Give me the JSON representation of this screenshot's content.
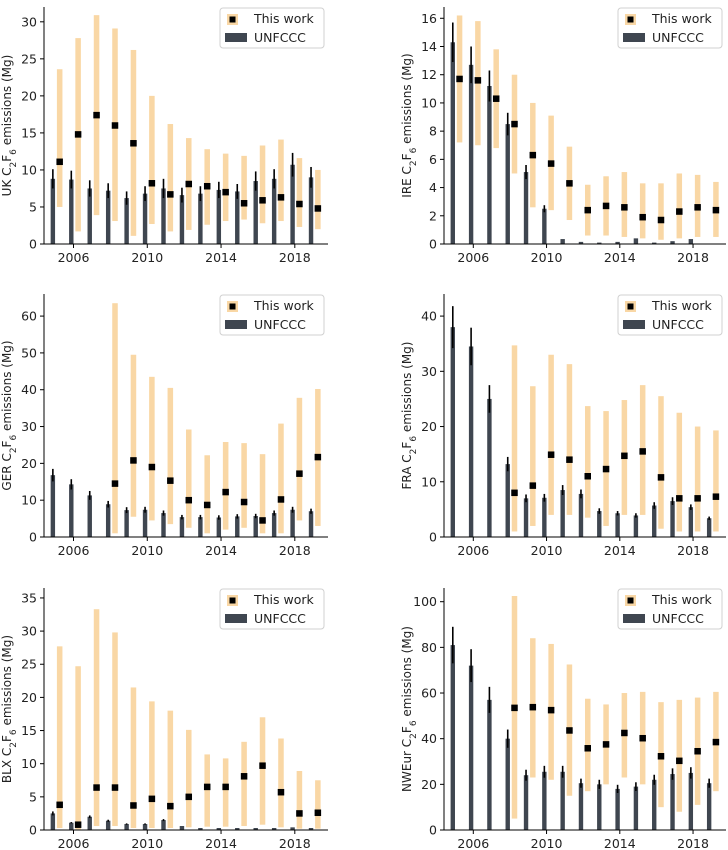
{
  "legend": {
    "this_work": "This work",
    "unfccc": "UNFCCC"
  },
  "colors": {
    "this_work_range": "#f9d7a5",
    "this_work_marker": "#000000",
    "unfccc_bar": "#3f4650",
    "unfccc_error": "#000000"
  },
  "chart_data": [
    {
      "type": "bar",
      "region": "UK",
      "ylabel": "UK C2F6 emissions (Mg)",
      "x": [
        2005,
        2006,
        2007,
        2008,
        2009,
        2010,
        2011,
        2012,
        2013,
        2014,
        2015,
        2016,
        2017,
        2018,
        2019
      ],
      "xticks": [
        2006,
        2010,
        2014,
        2018
      ],
      "ylim": [
        0,
        32
      ],
      "yticks": [
        0,
        5,
        10,
        15,
        20,
        25,
        30
      ],
      "series": [
        {
          "name": "This work",
          "type": "range_with_point",
          "values": [
            11.1,
            14.8,
            17.4,
            16.0,
            13.6,
            8.2,
            6.7,
            8.1,
            7.8,
            7.0,
            5.5,
            5.9,
            6.3,
            5.4,
            4.8
          ],
          "lower": [
            5.0,
            1.7,
            3.9,
            3.1,
            1.1,
            2.7,
            1.7,
            1.9,
            2.6,
            3.1,
            3.3,
            2.8,
            3.1,
            2.3,
            2.0
          ],
          "upper": [
            23.6,
            27.8,
            30.9,
            29.1,
            26.2,
            20.0,
            16.2,
            14.3,
            12.8,
            12.2,
            11.9,
            13.3,
            14.1,
            11.6,
            10.0
          ]
        },
        {
          "name": "UNFCCC",
          "type": "bar_with_error",
          "values": [
            8.8,
            8.7,
            7.5,
            7.2,
            6.2,
            6.8,
            7.5,
            6.6,
            6.8,
            7.3,
            7.1,
            8.5,
            8.8,
            10.7,
            9.0
          ],
          "error": [
            1.3,
            1.2,
            1.1,
            1.0,
            0.9,
            1.0,
            1.3,
            1.0,
            1.0,
            1.1,
            1.0,
            1.3,
            1.3,
            1.6,
            1.4
          ]
        }
      ]
    },
    {
      "type": "bar",
      "region": "IRE",
      "ylabel": "IRE C2F6 emissions (Mg)",
      "x": [
        2005,
        2006,
        2007,
        2008,
        2009,
        2010,
        2011,
        2012,
        2013,
        2014,
        2015,
        2016,
        2017,
        2018,
        2019
      ],
      "xticks": [
        2006,
        2010,
        2014,
        2018
      ],
      "ylim": [
        0,
        16.8
      ],
      "yticks": [
        0,
        2,
        4,
        6,
        8,
        10,
        12,
        14,
        16
      ],
      "series": [
        {
          "name": "This work",
          "type": "range_with_point",
          "values": [
            11.7,
            11.6,
            10.3,
            8.5,
            6.3,
            5.7,
            4.3,
            2.4,
            2.7,
            2.6,
            1.9,
            1.7,
            2.3,
            2.6,
            2.4
          ],
          "lower": [
            7.2,
            7.0,
            6.8,
            5.0,
            2.6,
            2.4,
            1.7,
            0.6,
            0.6,
            0.5,
            0.4,
            0.3,
            0.4,
            0.5,
            0.5
          ],
          "upper": [
            16.2,
            15.8,
            13.8,
            12.0,
            10.0,
            9.1,
            6.9,
            4.2,
            4.8,
            5.1,
            4.3,
            4.3,
            5.0,
            4.9,
            4.4
          ]
        },
        {
          "name": "UNFCCC",
          "type": "bar_with_error",
          "values": [
            14.3,
            12.7,
            11.2,
            8.5,
            5.1,
            2.5,
            0.35,
            0.15,
            0.1,
            0.15,
            0.4,
            0.1,
            0.2,
            0.35,
            0
          ],
          "error": [
            1.4,
            1.3,
            1.1,
            0.8,
            0.5,
            0.25,
            0,
            0,
            0,
            0,
            0,
            0,
            0,
            0,
            0
          ]
        }
      ]
    },
    {
      "type": "bar",
      "region": "GER",
      "ylabel": "GER C2F6 emissions (Mg)",
      "x": [
        2005,
        2006,
        2007,
        2008,
        2009,
        2010,
        2011,
        2012,
        2013,
        2014,
        2015,
        2016,
        2017,
        2018,
        2019
      ],
      "xticks": [
        2006,
        2010,
        2014,
        2018
      ],
      "ylim": [
        0,
        66
      ],
      "yticks": [
        0,
        10,
        20,
        30,
        40,
        50,
        60
      ],
      "series": [
        {
          "name": "This work",
          "type": "range_with_point",
          "values": [
            null,
            null,
            null,
            14.5,
            20.8,
            19.0,
            15.3,
            10.0,
            8.7,
            12.2,
            9.5,
            4.5,
            10.2,
            17.2,
            21.7
          ],
          "lower": [
            null,
            null,
            null,
            1.0,
            5.5,
            4.5,
            3.5,
            2.5,
            1.0,
            2.0,
            2.5,
            1.0,
            1.0,
            4.5,
            3.0
          ],
          "upper": [
            null,
            null,
            null,
            63.5,
            49.5,
            43.5,
            40.5,
            29.2,
            22.2,
            25.8,
            25.5,
            22.5,
            30.8,
            37.8,
            40.2
          ]
        },
        {
          "name": "UNFCCC",
          "type": "bar_with_error",
          "values": [
            16.8,
            14.3,
            11.3,
            8.9,
            7.3,
            7.4,
            6.5,
            5.4,
            5.4,
            5.3,
            5.6,
            5.7,
            6.5,
            7.4,
            7.0
          ],
          "error": [
            1.7,
            1.4,
            1.2,
            0.9,
            0.8,
            0.8,
            0.7,
            0.6,
            0.6,
            0.6,
            0.6,
            0.6,
            0.7,
            0.8,
            0.7
          ]
        }
      ]
    },
    {
      "type": "bar",
      "region": "FRA",
      "ylabel": "FRA C2F6 emissions (Mg)",
      "x": [
        2005,
        2006,
        2007,
        2008,
        2009,
        2010,
        2011,
        2012,
        2013,
        2014,
        2015,
        2016,
        2017,
        2018,
        2019
      ],
      "xticks": [
        2006,
        2010,
        2014,
        2018
      ],
      "ylim": [
        0,
        44
      ],
      "yticks": [
        0,
        10,
        20,
        30,
        40
      ],
      "series": [
        {
          "name": "This work",
          "type": "range_with_point",
          "values": [
            null,
            null,
            null,
            8.0,
            9.3,
            14.9,
            14.0,
            11.0,
            12.3,
            14.7,
            15.5,
            10.8,
            7.0,
            7.0,
            7.3
          ],
          "lower": [
            null,
            null,
            null,
            1.0,
            2.0,
            4.0,
            4.0,
            3.5,
            2.0,
            4.0,
            4.0,
            1.5,
            1.0,
            1.0,
            1.0
          ],
          "upper": [
            null,
            null,
            null,
            34.7,
            27.3,
            33.0,
            31.3,
            23.7,
            22.8,
            24.8,
            27.5,
            25.5,
            22.5,
            20.0,
            19.3
          ]
        },
        {
          "name": "UNFCCC",
          "type": "bar_with_error",
          "values": [
            38.0,
            34.5,
            25.0,
            13.2,
            7.0,
            7.1,
            8.5,
            7.8,
            4.7,
            4.3,
            3.9,
            5.7,
            6.5,
            5.4,
            3.4
          ],
          "error": [
            3.8,
            3.4,
            2.5,
            1.3,
            0.7,
            0.7,
            0.9,
            0.8,
            0.5,
            0.4,
            0.4,
            0.6,
            0.7,
            0.5,
            0.3
          ]
        }
      ]
    },
    {
      "type": "bar",
      "region": "BLX",
      "ylabel": "BLX C2F6 emissions (Mg)",
      "x": [
        2005,
        2006,
        2007,
        2008,
        2009,
        2010,
        2011,
        2012,
        2013,
        2014,
        2015,
        2016,
        2017,
        2018,
        2019
      ],
      "xticks": [
        2006,
        2010,
        2014,
        2018
      ],
      "ylim": [
        0,
        36.5
      ],
      "yticks": [
        0,
        5,
        10,
        15,
        20,
        25,
        30,
        35
      ],
      "series": [
        {
          "name": "This work",
          "type": "range_with_point",
          "values": [
            3.8,
            0.8,
            6.4,
            6.4,
            3.7,
            4.7,
            3.6,
            5.0,
            6.5,
            6.5,
            8.1,
            9.7,
            5.7,
            2.5,
            2.6
          ],
          "lower": [
            0.3,
            0.1,
            0.6,
            0.6,
            0.3,
            0.3,
            0.3,
            0.4,
            0.5,
            0.5,
            0.6,
            0.8,
            0.4,
            0.2,
            0.2
          ],
          "upper": [
            27.7,
            24.7,
            33.3,
            29.8,
            21.5,
            19.4,
            18.0,
            15.1,
            11.4,
            10.8,
            13.3,
            17.0,
            13.8,
            8.9,
            7.5
          ]
        },
        {
          "name": "UNFCCC",
          "type": "bar_with_error",
          "values": [
            2.5,
            1.1,
            2.0,
            1.4,
            0.9,
            0.9,
            1.5,
            0.6,
            0.3,
            0.3,
            0.3,
            0.3,
            0.3,
            0.4,
            0.3
          ],
          "error": [
            0.3,
            0.1,
            0.2,
            0.15,
            0.1,
            0.1,
            0.15,
            0,
            0,
            0,
            0,
            0,
            0,
            0,
            0
          ]
        }
      ]
    },
    {
      "type": "bar",
      "region": "NWEur",
      "ylabel": "NWEur C2F6 emissions (Mg)",
      "x": [
        2005,
        2006,
        2007,
        2008,
        2009,
        2010,
        2011,
        2012,
        2013,
        2014,
        2015,
        2016,
        2017,
        2018,
        2019
      ],
      "xticks": [
        2006,
        2010,
        2014,
        2018
      ],
      "ylim": [
        0,
        106
      ],
      "yticks": [
        0,
        20,
        40,
        60,
        80,
        100
      ],
      "series": [
        {
          "name": "This work",
          "type": "range_with_point",
          "values": [
            null,
            null,
            null,
            53.5,
            53.8,
            52.5,
            43.6,
            35.8,
            37.5,
            42.5,
            40.2,
            32.3,
            30.3,
            34.5,
            38.5
          ],
          "lower": [
            null,
            null,
            null,
            5.0,
            23.0,
            22.0,
            15.0,
            17.0,
            20.0,
            23.0,
            20.0,
            10.0,
            8.0,
            11.0,
            17.0
          ],
          "upper": [
            null,
            null,
            null,
            102.5,
            84.0,
            81.5,
            72.5,
            57.5,
            55.0,
            60.0,
            60.5,
            56.0,
            57.0,
            58.0,
            60.5
          ]
        },
        {
          "name": "UNFCCC",
          "type": "bar_with_error",
          "values": [
            81.0,
            72.0,
            57.0,
            40.0,
            24.0,
            25.5,
            25.5,
            20.5,
            20.0,
            18.0,
            19.0,
            22.0,
            24.5,
            25.0,
            20.5
          ],
          "error": [
            8.0,
            7.2,
            5.7,
            4.0,
            2.4,
            2.6,
            2.6,
            2.0,
            2.0,
            1.8,
            1.9,
            2.2,
            2.5,
            2.5,
            2.0
          ]
        }
      ]
    }
  ]
}
